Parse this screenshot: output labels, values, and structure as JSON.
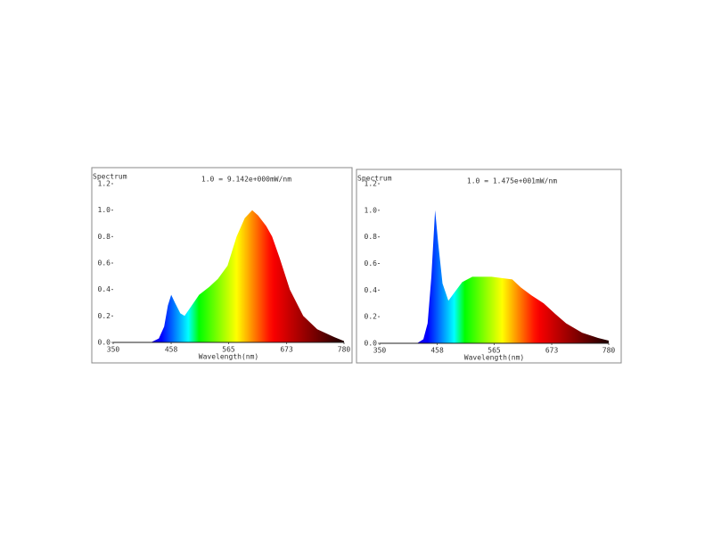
{
  "chart_data": [
    {
      "type": "area",
      "title": "Spectrum",
      "annotation": "1.0 = 9.142e+000mW/nm",
      "x_label": "Wavelength(nm)",
      "x": [
        350,
        420,
        435,
        445,
        452,
        458,
        465,
        475,
        483,
        495,
        510,
        529,
        545,
        563,
        580,
        595,
        609,
        620,
        635,
        646,
        660,
        679,
        704,
        730,
        762,
        780
      ],
      "values": [
        0.0,
        0.0,
        0.03,
        0.12,
        0.28,
        0.36,
        0.3,
        0.22,
        0.2,
        0.27,
        0.36,
        0.42,
        0.48,
        0.58,
        0.8,
        0.94,
        1.0,
        0.96,
        0.88,
        0.8,
        0.64,
        0.4,
        0.2,
        0.1,
        0.04,
        0.01
      ],
      "xlim": [
        350,
        780
      ],
      "ylim": [
        0,
        1.2
      ],
      "xticks": [
        350,
        458,
        565,
        673,
        780
      ],
      "yticks": [
        {
          "value": 0,
          "label": "0.0"
        },
        0.2,
        0.4,
        0.6,
        0.8,
        {
          "value": 1,
          "label": "1.0"
        },
        1.2
      ]
    },
    {
      "type": "area",
      "title": "Spectrum",
      "annotation": "1.0 = 1.475e+001mW/nm",
      "x_label": "Wavelength(nm)",
      "x": [
        350,
        420,
        432,
        440,
        447,
        454,
        460,
        468,
        479,
        490,
        505,
        524,
        560,
        599,
        615,
        635,
        658,
        680,
        700,
        730,
        760,
        780
      ],
      "values": [
        0.0,
        0.0,
        0.03,
        0.15,
        0.5,
        1.0,
        0.75,
        0.45,
        0.32,
        0.38,
        0.46,
        0.5,
        0.5,
        0.48,
        0.42,
        0.36,
        0.3,
        0.22,
        0.15,
        0.08,
        0.04,
        0.02
      ],
      "xlim": [
        350,
        780
      ],
      "ylim": [
        0,
        1.2
      ],
      "xticks": [
        350,
        458,
        565,
        673,
        780
      ],
      "yticks": [
        {
          "value": 0,
          "label": "0.0"
        },
        0.2,
        0.4,
        0.6,
        0.8,
        {
          "value": 1,
          "label": "1.0"
        },
        1.2
      ]
    }
  ]
}
